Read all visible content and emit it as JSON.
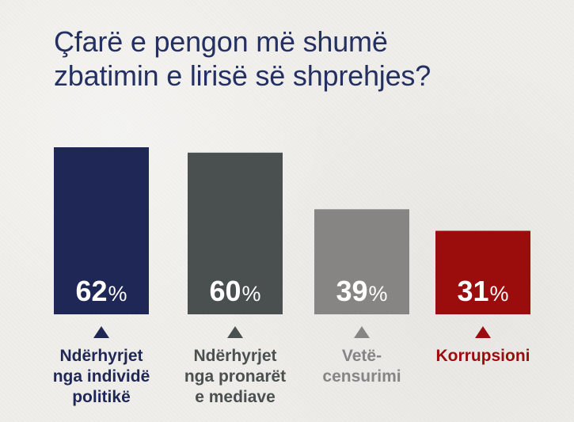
{
  "title": {
    "line1": "Çfarë e pengon më shumë",
    "line2": "zbatimin e lirisë së shprehjes?"
  },
  "colors": {
    "background": "#efeeea",
    "title": "#243061"
  },
  "chart_data": {
    "type": "bar",
    "title": "Çfarë e pengon më shumë zbatimin e lirisë së shprehjes?",
    "categories": [
      "Ndërhyrjet nga individë politikë",
      "Ndërhyrjet nga pronarët e mediave",
      "Vetë-censurimi",
      "Korrupsioni"
    ],
    "category_lines": [
      [
        "Ndërhyrjet",
        "nga individë",
        "politikë"
      ],
      [
        "Ndërhyrjet",
        "nga pronarët",
        "e mediave"
      ],
      [
        "Vetë-",
        "censurimi"
      ],
      [
        "Korrupsioni"
      ]
    ],
    "values": [
      62,
      60,
      39,
      31
    ],
    "value_labels": [
      "62",
      "60",
      "39",
      "31"
    ],
    "unit": "%",
    "bar_colors": [
      "#1f2756",
      "#4a4f50",
      "#868584",
      "#9b0d0d"
    ],
    "label_colors": [
      "#1f2756",
      "#4a4f50",
      "#868584",
      "#9b0d0d"
    ],
    "ylim": [
      0,
      62
    ],
    "grid": false,
    "legend": "none"
  }
}
